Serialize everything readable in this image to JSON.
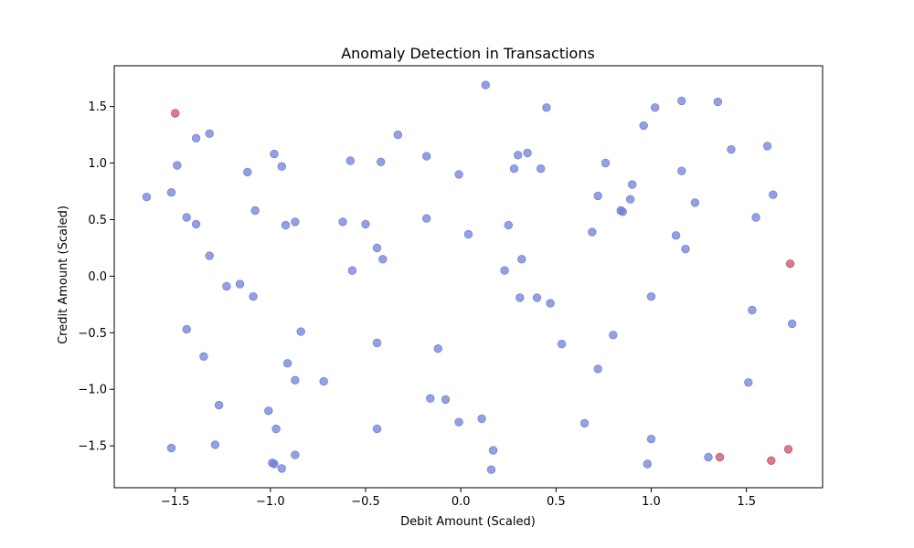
{
  "chart_data": {
    "type": "scatter",
    "title": "Anomaly Detection in Transactions",
    "xlabel": "Debit Amount (Scaled)",
    "ylabel": "Credit Amount (Scaled)",
    "xlim": [
      -1.82,
      1.9
    ],
    "ylim": [
      -1.87,
      1.86
    ],
    "grid": false,
    "x_ticks": [
      -1.5,
      -1.0,
      -0.5,
      0.0,
      0.5,
      1.0,
      1.5
    ],
    "x_tick_labels": [
      "−1.5",
      "−1.0",
      "−0.5",
      "0.0",
      "0.5",
      "1.0",
      "1.5"
    ],
    "y_ticks": [
      1.5,
      1.0,
      0.5,
      0.0,
      -0.5,
      -1.0,
      -1.5
    ],
    "y_tick_labels": [
      "1.5",
      "1.0",
      "0.5",
      "0.0",
      "−0.5",
      "−1.0",
      "−1.5"
    ],
    "colors": {
      "normal": "#6b7bd6",
      "anomaly": "#c64a5e"
    },
    "series": [
      {
        "role": "normal",
        "points": [
          [
            -1.65,
            0.7
          ],
          [
            -1.52,
            0.74
          ],
          [
            -1.49,
            0.98
          ],
          [
            -1.44,
            0.52
          ],
          [
            -1.39,
            0.46
          ],
          [
            -1.39,
            1.22
          ],
          [
            -1.32,
            1.26
          ],
          [
            -1.32,
            0.18
          ],
          [
            -1.44,
            -0.47
          ],
          [
            -1.35,
            -0.71
          ],
          [
            -1.27,
            -1.14
          ],
          [
            -1.29,
            -1.49
          ],
          [
            -1.52,
            -1.52
          ],
          [
            -1.23,
            -0.09
          ],
          [
            -1.16,
            -0.07
          ],
          [
            -1.12,
            0.92
          ],
          [
            -1.08,
            0.58
          ],
          [
            -1.09,
            -0.18
          ],
          [
            -0.98,
            1.08
          ],
          [
            -0.94,
            0.97
          ],
          [
            -0.92,
            0.45
          ],
          [
            -0.87,
            0.48
          ],
          [
            -0.84,
            -0.49
          ],
          [
            -0.91,
            -0.77
          ],
          [
            -0.87,
            -0.92
          ],
          [
            -1.01,
            -1.19
          ],
          [
            -0.97,
            -1.35
          ],
          [
            -0.99,
            -1.65
          ],
          [
            -0.98,
            -1.66
          ],
          [
            -0.94,
            -1.7
          ],
          [
            -0.87,
            -1.58
          ],
          [
            -0.72,
            -0.93
          ],
          [
            -0.62,
            0.48
          ],
          [
            -0.58,
            1.02
          ],
          [
            -0.57,
            0.05
          ],
          [
            -0.5,
            0.46
          ],
          [
            -0.44,
            0.25
          ],
          [
            -0.42,
            1.01
          ],
          [
            -0.41,
            0.15
          ],
          [
            -0.44,
            -0.59
          ],
          [
            -0.44,
            -1.35
          ],
          [
            -0.33,
            1.25
          ],
          [
            -0.18,
            1.06
          ],
          [
            -0.18,
            0.51
          ],
          [
            -0.16,
            -1.08
          ],
          [
            -0.12,
            -0.64
          ],
          [
            -0.08,
            -1.09
          ],
          [
            -0.01,
            0.9
          ],
          [
            0.04,
            0.37
          ],
          [
            -0.01,
            -1.29
          ],
          [
            0.11,
            -1.26
          ],
          [
            0.13,
            1.69
          ],
          [
            0.16,
            -1.71
          ],
          [
            0.17,
            -1.54
          ],
          [
            0.23,
            0.05
          ],
          [
            0.25,
            0.45
          ],
          [
            0.28,
            0.95
          ],
          [
            0.3,
            1.07
          ],
          [
            0.32,
            0.15
          ],
          [
            0.31,
            -0.19
          ],
          [
            0.35,
            1.09
          ],
          [
            0.4,
            -0.19
          ],
          [
            0.42,
            0.95
          ],
          [
            0.45,
            1.49
          ],
          [
            0.47,
            -0.24
          ],
          [
            0.53,
            -0.6
          ],
          [
            0.65,
            -1.3
          ],
          [
            0.69,
            0.39
          ],
          [
            0.72,
            0.71
          ],
          [
            0.72,
            -0.82
          ],
          [
            0.76,
            1.0
          ],
          [
            0.8,
            -0.52
          ],
          [
            0.84,
            0.58
          ],
          [
            0.85,
            0.57
          ],
          [
            0.89,
            0.68
          ],
          [
            0.9,
            0.81
          ],
          [
            0.96,
            1.33
          ],
          [
            0.98,
            -1.66
          ],
          [
            1.0,
            -0.18
          ],
          [
            1.0,
            -1.44
          ],
          [
            1.02,
            1.49
          ],
          [
            1.13,
            0.36
          ],
          [
            1.16,
            0.93
          ],
          [
            1.16,
            1.55
          ],
          [
            1.18,
            0.24
          ],
          [
            1.23,
            0.65
          ],
          [
            1.3,
            -1.6
          ],
          [
            1.35,
            1.54
          ],
          [
            1.42,
            1.12
          ],
          [
            1.51,
            -0.94
          ],
          [
            1.53,
            -0.3
          ],
          [
            1.55,
            0.52
          ],
          [
            1.61,
            1.15
          ],
          [
            1.64,
            0.72
          ],
          [
            1.74,
            -0.42
          ]
        ]
      },
      {
        "role": "anomaly",
        "points": [
          [
            -1.5,
            1.44
          ],
          [
            1.36,
            -1.6
          ],
          [
            1.63,
            -1.63
          ],
          [
            1.72,
            -1.53
          ],
          [
            1.73,
            0.11
          ]
        ]
      }
    ]
  }
}
